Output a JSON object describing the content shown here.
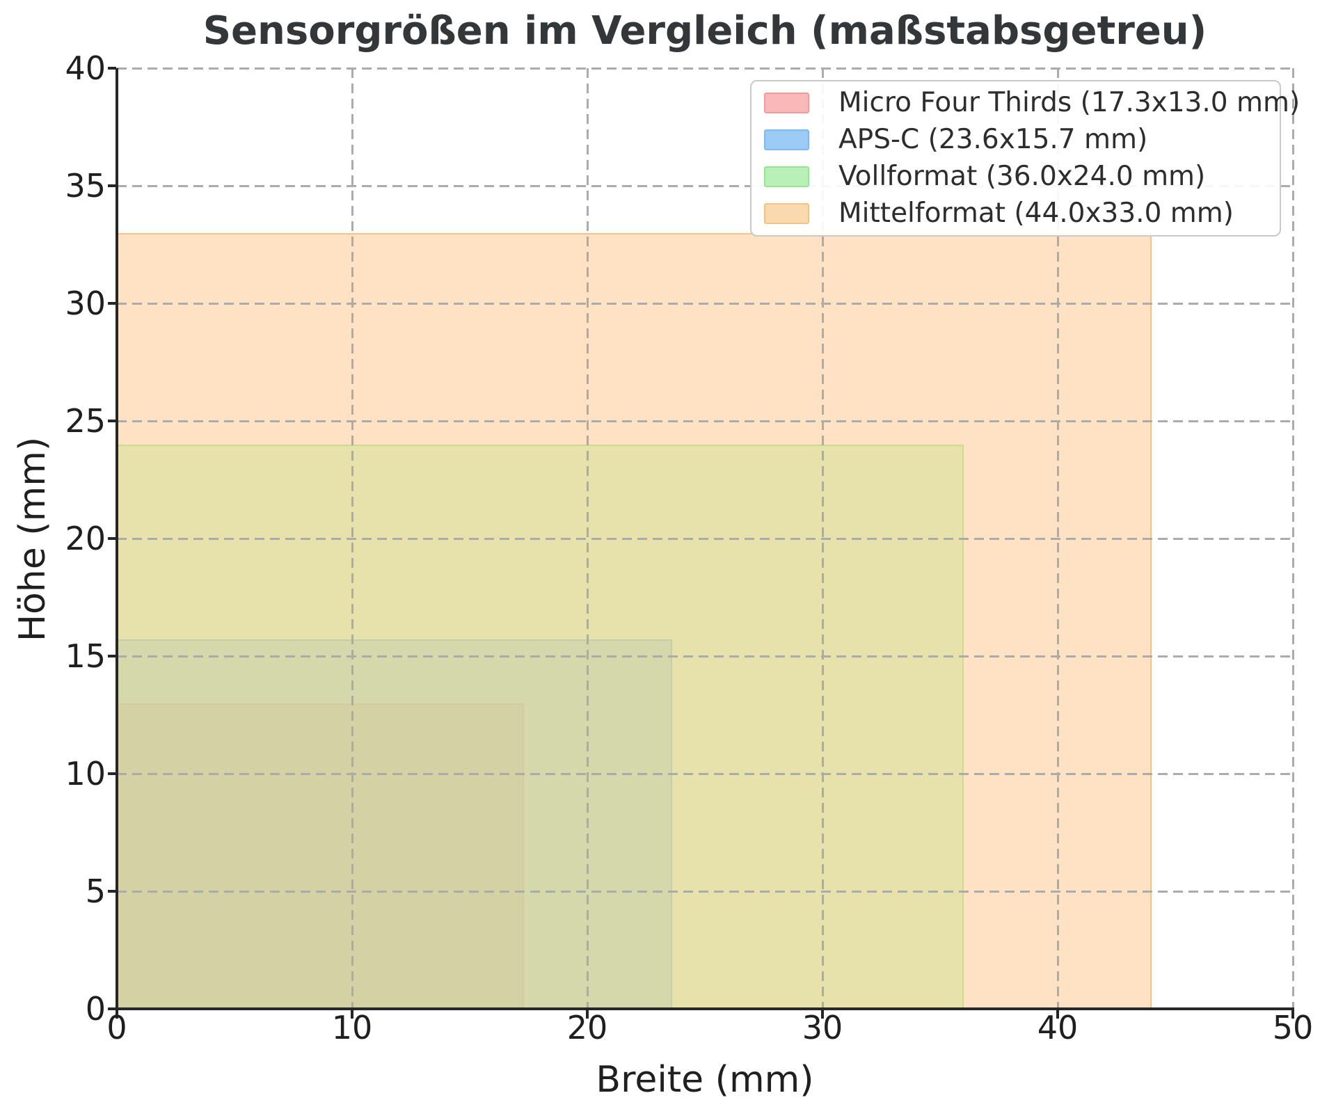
{
  "title": "Sensorgrößen im Vergleich (maßstabsgetreu)",
  "chart_data": {
    "type": "area",
    "title": "Sensorgrößen im Vergleich (maßstabsgetreu)",
    "xlabel": "Breite (mm)",
    "ylabel": "Höhe (mm)",
    "xlim": [
      0,
      50
    ],
    "ylim": [
      0,
      40
    ],
    "xticks": [
      0,
      10,
      20,
      30,
      40,
      50
    ],
    "yticks": [
      0,
      5,
      10,
      15,
      20,
      25,
      30,
      35,
      40
    ],
    "grid": true,
    "grid_color": "#ababab",
    "spine_color": "#262626",
    "legend_position": "upper right",
    "series": [
      {
        "name": "Micro Four Thirds",
        "label": "Micro Four Thirds (17.3x13.0 mm)",
        "width_mm": 17.3,
        "height_mm": 13.0,
        "fill": "rgba(255,148,148,0.5)",
        "edge": "rgba(243,116,116,0.6)",
        "legend_fill": "#fab8b8",
        "legend_edge": "#f49c9c"
      },
      {
        "name": "APS-C",
        "label": "APS-C (23.6x15.7 mm)",
        "width_mm": 23.6,
        "height_mm": 15.7,
        "fill": "rgba(102,179,255,0.5)",
        "edge": "rgba(73,150,235,0.6)",
        "legend_fill": "#9ccbf5",
        "legend_edge": "#7eb9ef"
      },
      {
        "name": "Vollformat",
        "label": "Vollformat (36.0x24.0 mm)",
        "width_mm": 36.0,
        "height_mm": 24.0,
        "fill": "rgba(153,255,153,0.5)",
        "edge": "rgba(113,226,113,0.6)",
        "legend_fill": "#b8f0b8",
        "legend_edge": "#94e594"
      },
      {
        "name": "Mittelformat",
        "label": "Mittelformat (44.0x33.0 mm)",
        "width_mm": 44.0,
        "height_mm": 33.0,
        "fill": "rgba(255,198,140,0.52)",
        "edge": "rgba(247,172,103,0.6)",
        "legend_fill": "#fad9ae",
        "legend_edge": "#f3c286"
      }
    ]
  }
}
